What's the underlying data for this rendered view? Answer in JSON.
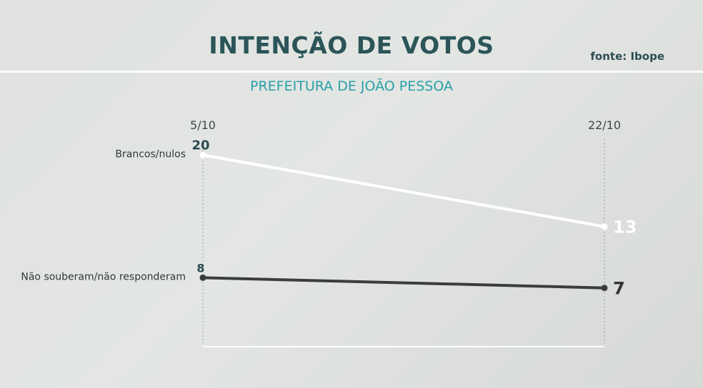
{
  "header": {
    "title": "INTENÇÃO DE VOTOS",
    "subtitle": "PREFEITURA DE JOÃO PESSOA",
    "source": "fonte: Ibope"
  },
  "chart_data": {
    "type": "line",
    "title": "INTENÇÃO DE VOTOS",
    "subtitle": "PREFEITURA DE JOÃO PESSOA",
    "categories": [
      "5/10",
      "22/10"
    ],
    "series": [
      {
        "name": "Brancos/nulos",
        "values": [
          20,
          13
        ],
        "color": "#ffffff",
        "label_color": "#2c4a50",
        "end_label_color": "#ffffff"
      },
      {
        "name": "Não souberam/não responderam",
        "values": [
          8,
          7
        ],
        "color": "#3b3d3b",
        "label_color": "#2c4a50",
        "end_label_color": "#333533"
      }
    ],
    "ylim": [
      0,
      24
    ],
    "grid": false,
    "xlabel": "",
    "ylabel": ""
  }
}
